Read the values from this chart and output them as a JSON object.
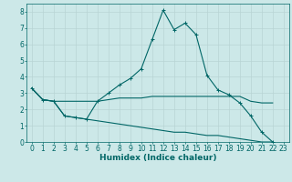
{
  "xlabel": "Humidex (Indice chaleur)",
  "bg_color": "#cce8e8",
  "grid_color": "#b8d4d4",
  "line_color": "#006666",
  "x": [
    0,
    1,
    2,
    3,
    4,
    5,
    6,
    7,
    8,
    9,
    10,
    11,
    12,
    13,
    14,
    15,
    16,
    17,
    18,
    19,
    20,
    21,
    22,
    23
  ],
  "series1": [
    3.3,
    2.6,
    2.5,
    1.6,
    1.5,
    1.4,
    2.5,
    3.0,
    3.5,
    3.9,
    4.5,
    6.3,
    8.1,
    6.9,
    7.3,
    6.6,
    4.1,
    3.2,
    2.9,
    2.4,
    1.6,
    0.6,
    0.0,
    null
  ],
  "series2": [
    3.3,
    2.6,
    2.5,
    2.5,
    2.5,
    2.5,
    2.5,
    2.6,
    2.7,
    2.7,
    2.7,
    2.8,
    2.8,
    2.8,
    2.8,
    2.8,
    2.8,
    2.8,
    2.8,
    2.8,
    2.5,
    2.4,
    2.4,
    null
  ],
  "series3": [
    3.3,
    2.6,
    2.5,
    1.6,
    1.5,
    1.4,
    1.3,
    1.2,
    1.1,
    1.0,
    0.9,
    0.8,
    0.7,
    0.6,
    0.6,
    0.5,
    0.4,
    0.4,
    0.3,
    0.2,
    0.1,
    0.0,
    0.0,
    null
  ],
  "ylim": [
    0,
    8.5
  ],
  "xlim": [
    -0.5,
    23.5
  ],
  "yticks": [
    0,
    1,
    2,
    3,
    4,
    5,
    6,
    7,
    8
  ],
  "xticks": [
    0,
    1,
    2,
    3,
    4,
    5,
    6,
    7,
    8,
    9,
    10,
    11,
    12,
    13,
    14,
    15,
    16,
    17,
    18,
    19,
    20,
    21,
    22,
    23
  ],
  "tick_fontsize": 5.5,
  "xlabel_fontsize": 6.5
}
